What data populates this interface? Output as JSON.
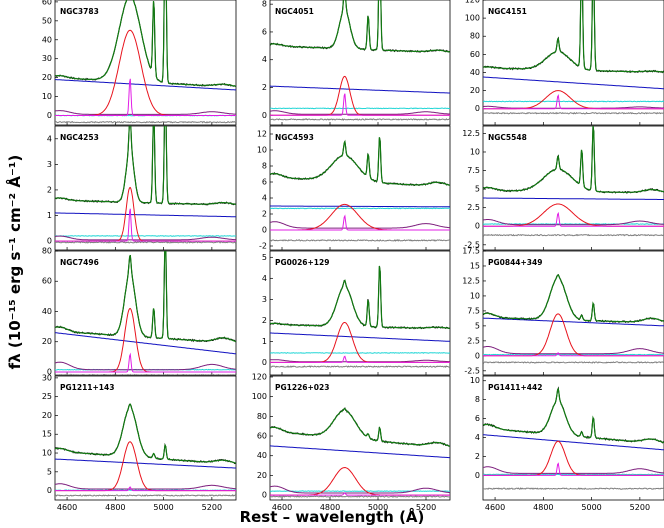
{
  "figure": {
    "ylabel": "fλ (10⁻¹⁵ erg s⁻¹ cm⁻² Å⁻¹)",
    "xlabel": "Rest – wavelength (Å)",
    "x_ticks": [
      "4600",
      "4800",
      "5000",
      "5200"
    ]
  },
  "colors": {
    "observed": "#000000",
    "fit": "#117a11",
    "powerlaw": "#1010c0",
    "broad_hbeta": "#e8141e",
    "narrow_hbeta": "#e21ee6",
    "feii": "#7d1e7d",
    "host": "#22d6d6",
    "residual": "#7f7f7f"
  },
  "chart_data": [
    {
      "type": "line",
      "title": "NGC3783",
      "xlim": [
        4550,
        5300
      ],
      "ylim": [
        -5,
        61
      ],
      "yticks": [
        0,
        10,
        20,
        30,
        40,
        50,
        60
      ],
      "components": {
        "continuum": [
          20,
          15
        ],
        "broad_peak": 45,
        "broad_width": 45,
        "narrow_peak": 20,
        "oiii_peaks": [
          40,
          85
        ],
        "feii_level": 2,
        "host_level": 0,
        "residual_offset": -3.5
      }
    },
    {
      "type": "line",
      "title": "NGC4051",
      "xlim": [
        4550,
        5300
      ],
      "ylim": [
        -0.7,
        8.3
      ],
      "yticks": [
        0,
        2,
        4,
        6,
        8
      ],
      "components": {
        "continuum": [
          5.0,
          4.5
        ],
        "broad_peak": 2.8,
        "broad_width": 22,
        "narrow_peak": 1.6,
        "oiii_peaks": [
          2.5,
          7.5
        ],
        "feii_level": 0.25,
        "host_level": 0.5,
        "powerlaw": [
          2.1,
          1.6
        ],
        "residual_offset": -0.3
      }
    },
    {
      "type": "line",
      "title": "NGC4151",
      "xlim": [
        4550,
        5300
      ],
      "ylim": [
        -18,
        120
      ],
      "yticks": [
        0,
        20,
        40,
        60,
        80,
        100,
        120
      ],
      "components": {
        "continuum": [
          45,
          40
        ],
        "broad_peak": 20,
        "broad_width": 50,
        "narrow_peak": 15,
        "oiii_peaks": [
          120,
          120
        ],
        "feii_level": 2,
        "host_level": 8,
        "powerlaw": [
          35,
          22
        ],
        "residual_offset": -5
      }
    },
    {
      "type": "line",
      "title": "NGC4253",
      "xlim": [
        4550,
        5300
      ],
      "ylim": [
        -0.35,
        4.5
      ],
      "yticks": [
        0,
        1,
        2,
        3,
        4
      ],
      "components": {
        "continuum": [
          1.6,
          1.4
        ],
        "broad_peak": 2.1,
        "broad_width": 16,
        "narrow_peak": 1.3,
        "oiii_peaks": [
          3.6,
          4.5
        ],
        "feii_level": 0.15,
        "host_level": 0.2,
        "powerlaw": [
          1.1,
          0.95
        ],
        "residual_offset": -0.05
      }
    },
    {
      "type": "line",
      "title": "NGC4593",
      "xlim": [
        4550,
        5300
      ],
      "ylim": [
        -2.5,
        13
      ],
      "yticks": [
        -2,
        0,
        2,
        4,
        6,
        8,
        10,
        12
      ],
      "components": {
        "continuum": [
          6.6,
          5.4
        ],
        "broad_peak": 3.2,
        "broad_width": 55,
        "narrow_peak": 1.8,
        "oiii_peaks": [
          3.0,
          5.8
        ],
        "feii_level": 0.8,
        "host_level": 2.7,
        "powerlaw": [
          3.0,
          2.9
        ],
        "residual_offset": -1.3
      }
    },
    {
      "type": "line",
      "title": "NGC5548",
      "xlim": [
        4550,
        5300
      ],
      "ylim": [
        -3.2,
        13.5
      ],
      "yticks": [
        -2.5,
        0.0,
        2.5,
        5.0,
        7.5,
        10.0,
        12.5
      ],
      "components": {
        "continuum": [
          4.8,
          4.5
        ],
        "broad_peak": 3.0,
        "broad_width": 60,
        "narrow_peak": 1.8,
        "oiii_peaks": [
          5.0,
          9.0
        ],
        "feii_level": 0.7,
        "host_level": 0.3,
        "powerlaw": [
          3.8,
          3.6
        ],
        "residual_offset": -1.2
      }
    },
    {
      "type": "line",
      "title": "NGC7496",
      "xlim": [
        4550,
        5300
      ],
      "ylim": [
        -2,
        80
      ],
      "yticks": [
        0,
        20,
        40,
        60,
        80
      ],
      "components": {
        "continuum": [
          27,
          19
        ],
        "broad_peak": 42,
        "broad_width": 22,
        "narrow_peak": 12,
        "oiii_peaks": [
          20,
          70
        ],
        "feii_level": 5,
        "host_level": 1.5,
        "powerlaw": [
          26,
          12
        ],
        "residual_offset": -2
      }
    },
    {
      "type": "line",
      "title": "PG0026+129",
      "xlim": [
        4550,
        5300
      ],
      "ylim": [
        -0.6,
        5.3
      ],
      "yticks": [
        0,
        1,
        2,
        3,
        4,
        5
      ],
      "components": {
        "continuum": [
          1.8,
          1.6
        ],
        "broad_peak": 1.9,
        "broad_width": 32,
        "narrow_peak": 0.3,
        "oiii_peaks": [
          1.3,
          3.0
        ],
        "feii_level": 0.1,
        "host_level": 0.45,
        "powerlaw": [
          1.4,
          1.0
        ],
        "residual_offset": -0.2
      }
    },
    {
      "type": "line",
      "title": "PG0844+349",
      "xlim": [
        4550,
        5300
      ],
      "ylim": [
        -3.2,
        17.5
      ],
      "yticks": [
        -2.5,
        0.0,
        2.5,
        5.0,
        7.5,
        10.0,
        12.5,
        15.0,
        17.5
      ],
      "components": {
        "continuum": [
          6.4,
          5.5
        ],
        "broad_peak": 7.0,
        "broad_width": 33,
        "narrow_peak": 0.5,
        "oiii_peaks": [
          0.8,
          3.0
        ],
        "feii_level": 1.2,
        "host_level": 0.2,
        "powerlaw": [
          6.3,
          5.0
        ],
        "residual_offset": -1.1
      }
    },
    {
      "type": "line",
      "title": "PG1211+143",
      "xlim": [
        4550,
        5300
      ],
      "ylim": [
        -2.5,
        30.5
      ],
      "yticks": [
        0,
        5,
        10,
        15,
        20,
        25,
        30
      ],
      "components": {
        "continuum": [
          10.5,
          7.0
        ],
        "broad_peak": 13,
        "broad_width": 28,
        "narrow_peak": 1.0,
        "oiii_peaks": [
          1.3,
          3.8
        ],
        "feii_level": 1.4,
        "host_level": 0.1,
        "powerlaw": [
          8.4,
          6.0
        ],
        "residual_offset": -1.3
      }
    },
    {
      "type": "line",
      "title": "PG1226+023",
      "xlim": [
        4550,
        5300
      ],
      "ylim": [
        -5,
        121
      ],
      "yticks": [
        0,
        20,
        40,
        60,
        80,
        100,
        120
      ],
      "components": {
        "continuum": [
          65,
          48
        ],
        "broad_peak": 28,
        "broad_width": 45,
        "narrow_peak": 2,
        "oiii_peaks": [
          4,
          14
        ],
        "feii_level": 7,
        "host_level": 4,
        "powerlaw": [
          50,
          38
        ],
        "residual_offset": -1.5
      }
    },
    {
      "type": "line",
      "title": "PG1411+442",
      "xlim": [
        4550,
        5300
      ],
      "ylim": [
        -2.6,
        10.5
      ],
      "yticks": [
        0,
        2,
        4,
        6,
        8,
        10
      ],
      "components": {
        "continuum": [
          5.0,
          3.3
        ],
        "broad_peak": 3.6,
        "broad_width": 30,
        "narrow_peak": 1.3,
        "oiii_peaks": [
          0.5,
          2.2
        ],
        "feii_level": 0.7,
        "host_level": 0.1,
        "powerlaw": [
          4.3,
          2.7
        ],
        "residual_offset": -1.4
      }
    }
  ]
}
